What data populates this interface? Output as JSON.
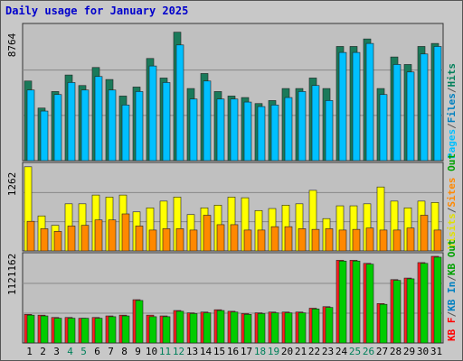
{
  "chart_data": {
    "type": "bar",
    "title": "Daily usage for January 2025",
    "categories": [
      "1",
      "2",
      "3",
      "4",
      "5",
      "6",
      "7",
      "8",
      "9",
      "10",
      "11",
      "12",
      "13",
      "14",
      "15",
      "16",
      "17",
      "18",
      "19",
      "20",
      "21",
      "22",
      "23",
      "24",
      "25",
      "26",
      "27",
      "28",
      "29",
      "30",
      "31"
    ],
    "weekend_days": [
      "4",
      "5",
      "11",
      "12",
      "18",
      "19",
      "25",
      "26"
    ],
    "panels": [
      {
        "id": "hits-files-pages",
        "max_label": "8764",
        "ymax": 8764,
        "legend": [
          {
            "text": "Pages",
            "color": "#00c0ff"
          },
          {
            "text": "/",
            "color": "#555555"
          },
          {
            "text": "Files",
            "color": "#0080c0"
          },
          {
            "text": "/",
            "color": "#555555"
          },
          {
            "text": "Hits",
            "color": "#00805a"
          }
        ],
        "series": [
          {
            "name": "Hits",
            "color": "#1a7a5a",
            "values": [
              5300,
              3500,
              4600,
              5700,
              5000,
              6200,
              5400,
              4300,
              4900,
              6800,
              5500,
              8550,
              4800,
              5800,
              4600,
              4300,
              4200,
              3800,
              4000,
              4800,
              4800,
              5500,
              4800,
              7600,
              7600,
              8100,
              4800,
              6900,
              6400,
              7600,
              7800
            ]
          },
          {
            "name": "Files",
            "color": "#00c0ff",
            "values": [
              4700,
              3300,
              4400,
              5200,
              4700,
              5600,
              4700,
              3700,
              4600,
              6300,
              5200,
              7700,
              4100,
              5300,
              4100,
              4100,
              3900,
              3600,
              3700,
              4200,
              4600,
              5000,
              4000,
              7200,
              7200,
              7800,
              4400,
              6400,
              5900,
              7100,
              7600
            ]
          }
        ]
      },
      {
        "id": "visits-sites",
        "max_label": "1262",
        "ymax": 1262,
        "legend": [
          {
            "text": "Visits",
            "color": "#e0e000"
          },
          {
            "text": "/",
            "color": "#555555"
          },
          {
            "text": "Sites",
            "color": "#ff8800"
          },
          {
            "text": "Out",
            "color": "#00a000"
          }
        ],
        "series": [
          {
            "name": "Visits",
            "color": "#ffff00",
            "values": [
              1250,
              520,
              380,
              700,
              700,
              830,
              800,
              830,
              580,
              640,
              740,
              800,
              540,
              640,
              680,
              800,
              790,
              600,
              630,
              680,
              700,
              900,
              480,
              670,
              670,
              700,
              950,
              740,
              640,
              740,
              720
            ]
          },
          {
            "name": "Sites",
            "color": "#ff8800",
            "values": [
              440,
              330,
              290,
              370,
              380,
              460,
              460,
              550,
              370,
              310,
              330,
              330,
              310,
              530,
              390,
              390,
              310,
              310,
              360,
              360,
              330,
              320,
              330,
              310,
              320,
              340,
              310,
              310,
              340,
              530,
              310
            ]
          }
        ]
      },
      {
        "id": "kbytes",
        "max_label": "1121162",
        "ymax": 1121162,
        "legend": [
          {
            "text": "KB F",
            "color": "#ff0000"
          },
          {
            "text": "/",
            "color": "#555555"
          },
          {
            "text": "KB In",
            "color": "#0080c0"
          },
          {
            "text": "/",
            "color": "#555555"
          },
          {
            "text": "KB Out",
            "color": "#00a000"
          }
        ],
        "series": [
          {
            "name": "KB F",
            "color": "#ff2020",
            "values": [
              370000,
              360000,
              330000,
              330000,
              320000,
              330000,
              350000,
              360000,
              560000,
              360000,
              350000,
              420000,
              390000,
              400000,
              430000,
              410000,
              380000,
              390000,
              400000,
              400000,
              400000,
              450000,
              470000,
              1070000,
              1070000,
              1030000,
              510000,
              820000,
              840000,
              1040000,
              1121162
            ]
          },
          {
            "name": "KB Out",
            "color": "#00cc00",
            "values": [
              360000,
              350000,
              320000,
              320000,
              320000,
              320000,
              340000,
              350000,
              550000,
              340000,
              340000,
              410000,
              380000,
              390000,
              420000,
              400000,
              370000,
              380000,
              390000,
              390000,
              390000,
              440000,
              460000,
              1060000,
              1060000,
              1020000,
              500000,
              810000,
              830000,
              1030000,
              1110000
            ]
          }
        ]
      }
    ]
  }
}
